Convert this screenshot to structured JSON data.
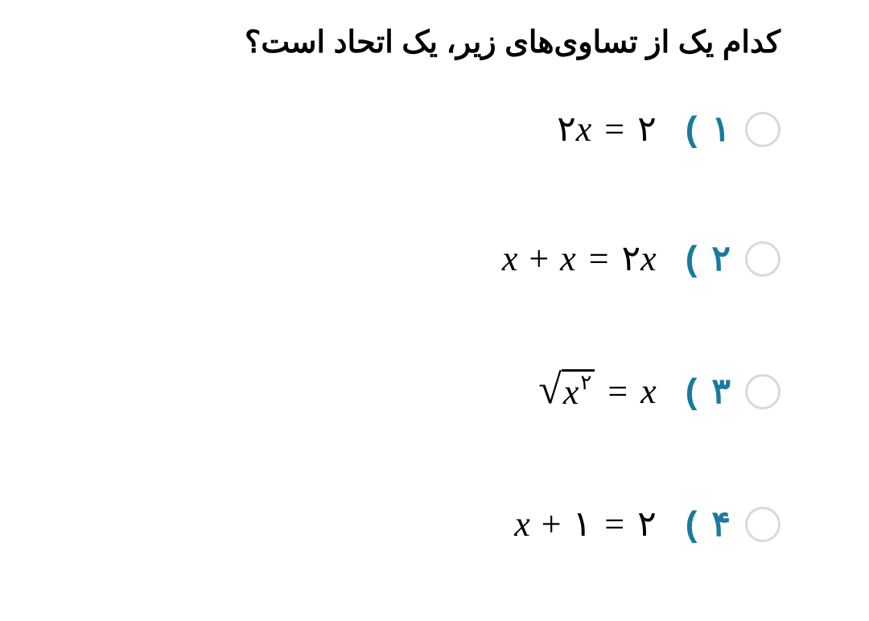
{
  "question": {
    "title": "کدام یک از تساوی‌های زیر، یک اتحاد است؟",
    "title_color": "#000000",
    "title_fontsize": 38
  },
  "label_color": "#1a7a9e",
  "radio_border_color": "#d9d9d9",
  "background_color": "#ffffff",
  "equation_fontsize": 44,
  "options": [
    {
      "num": "۱",
      "paren": ")",
      "eq_parts": {
        "lhs_coef": "۲",
        "lhs_var": "x",
        "eq": "=",
        "rhs": "۲"
      }
    },
    {
      "num": "۲",
      "paren": ")",
      "eq_parts": {
        "t1": "x",
        "plus": "+",
        "t2": "x",
        "eq": "=",
        "rhs_coef": "۲",
        "rhs_var": "x"
      }
    },
    {
      "num": "۳",
      "paren": ")",
      "eq_parts": {
        "sqrt_sym": "√",
        "sqrt_base": "x",
        "sqrt_exp": "۲",
        "eq": "=",
        "rhs": "x"
      }
    },
    {
      "num": "۴",
      "paren": ")",
      "eq_parts": {
        "t1": "x",
        "plus": "+",
        "t2": "۱",
        "eq": "=",
        "rhs": "۲"
      }
    }
  ]
}
